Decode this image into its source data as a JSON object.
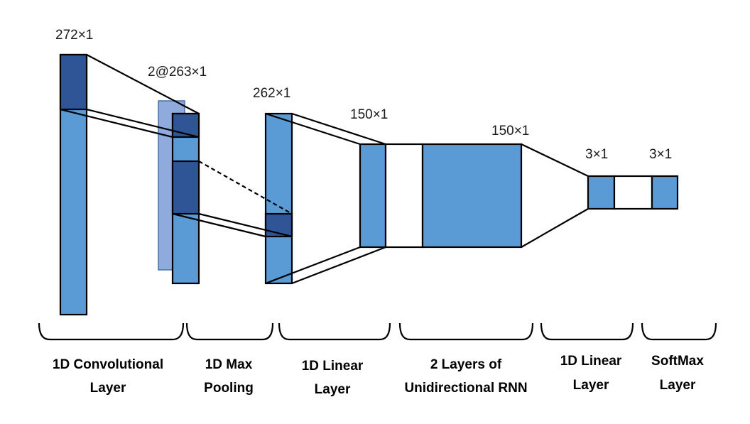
{
  "colors": {
    "layer_fill": "#5b9bd5",
    "kernel_fill": "#2f5597",
    "back_channel_fill": "#8faadc",
    "connector_fill": "#ffffff",
    "stroke": "#000000"
  },
  "dimensions": {
    "conv_input": "272×1",
    "pool_input": "2@263×1",
    "pool_output": "262×1",
    "linear_output": "150×1",
    "rnn_output": "150×1",
    "linear2_output": "3×1",
    "softmax_output": "3×1"
  },
  "stages": [
    {
      "line1": "1D Convolutional",
      "line2": "Layer"
    },
    {
      "line1": "1D Max",
      "line2": "Pooling"
    },
    {
      "line1": "1D Linear",
      "line2": "Layer"
    },
    {
      "line1": "2 Layers of",
      "line2": "Unidirectional RNN"
    },
    {
      "line1": "1D Linear",
      "line2": "Layer"
    },
    {
      "line1": "SoftMax",
      "line2": "Layer"
    }
  ]
}
